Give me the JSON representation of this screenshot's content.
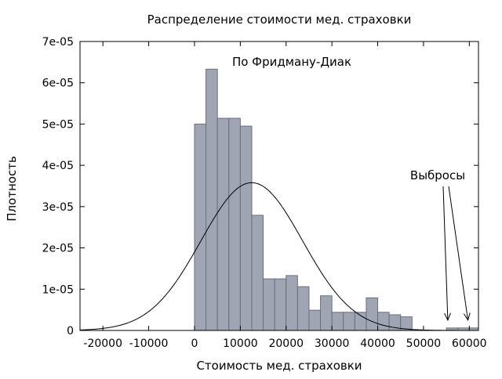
{
  "chart_data": {
    "type": "bar",
    "title": "Распределение стоимости мед. страховки",
    "subtitle": "По Фридману-Диак",
    "xlabel": "Стоимость мед. страховки",
    "ylabel": "Плотность",
    "xlim": [
      -25000,
      62000
    ],
    "ylim": [
      0,
      7e-05
    ],
    "xticks": [
      -20000,
      -10000,
      0,
      10000,
      20000,
      30000,
      40000,
      50000,
      60000
    ],
    "yticks": [
      0,
      1e-05,
      2e-05,
      3e-05,
      4e-05,
      5e-05,
      6e-05,
      7e-05
    ],
    "xtick_labels": [
      "-20000",
      "-10000",
      "0",
      "10000",
      "20000",
      "30000",
      "40000",
      "50000",
      "60000"
    ],
    "ytick_labels": [
      "0",
      "1e-05",
      "2e-05",
      "3e-05",
      "4e-05",
      "5e-05",
      "6e-05",
      "7e-05"
    ],
    "grid": false,
    "bin_width": 2500,
    "bins": [
      {
        "x0": 0,
        "x1": 2500,
        "density": 5e-05
      },
      {
        "x0": 2500,
        "x1": 5000,
        "density": 6.33e-05
      },
      {
        "x0": 5000,
        "x1": 7500,
        "density": 5.14e-05
      },
      {
        "x0": 7500,
        "x1": 10000,
        "density": 5.14e-05
      },
      {
        "x0": 10000,
        "x1": 12500,
        "density": 4.95e-05
      },
      {
        "x0": 12500,
        "x1": 15000,
        "density": 2.79e-05
      },
      {
        "x0": 15000,
        "x1": 17500,
        "density": 1.25e-05
      },
      {
        "x0": 17500,
        "x1": 20000,
        "density": 1.25e-05
      },
      {
        "x0": 20000,
        "x1": 22500,
        "density": 1.33e-05
      },
      {
        "x0": 22500,
        "x1": 25000,
        "density": 1.06e-05
      },
      {
        "x0": 25000,
        "x1": 27500,
        "density": 4.9e-06
      },
      {
        "x0": 27500,
        "x1": 30000,
        "density": 8.4e-06
      },
      {
        "x0": 30000,
        "x1": 32500,
        "density": 4.4e-06
      },
      {
        "x0": 32500,
        "x1": 35000,
        "density": 4.4e-06
      },
      {
        "x0": 35000,
        "x1": 37500,
        "density": 4.4e-06
      },
      {
        "x0": 37500,
        "x1": 40000,
        "density": 7.9e-06
      },
      {
        "x0": 40000,
        "x1": 42500,
        "density": 4.4e-06
      },
      {
        "x0": 42500,
        "x1": 45000,
        "density": 3.8e-06
      },
      {
        "x0": 45000,
        "x1": 47500,
        "density": 3.3e-06
      },
      {
        "x0": 55000,
        "x1": 57500,
        "density": 6e-07
      },
      {
        "x0": 57500,
        "x1": 60000,
        "density": 6e-07
      },
      {
        "x0": 60000,
        "x1": 62000,
        "density": 6e-07
      }
    ],
    "normal_curve": {
      "mean": 12500,
      "sd": 11100,
      "peak": 3.58e-05
    },
    "annotation": {
      "text": "Выбросы",
      "arrow_targets": [
        {
          "x": 55300,
          "y": 2.5e-06
        },
        {
          "x": 59700,
          "y": 2.5e-06
        }
      ]
    },
    "colors": {
      "bar_fill": "#a0a5b4",
      "bar_stroke": "#6b6f7b",
      "curve": "#000000",
      "axis": "#000000"
    }
  }
}
